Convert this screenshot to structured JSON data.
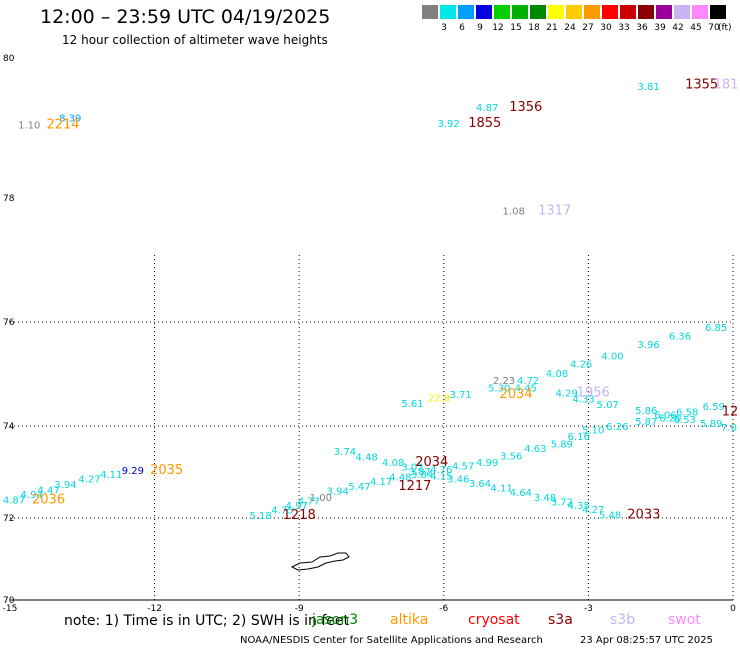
{
  "title": "12:00 – 23:59 UTC 04/19/2025",
  "subtitle": "12 hour collection of altimeter wave heights",
  "legend": {
    "unit": "(ft)",
    "items": [
      {
        "label": "3",
        "color": "#808080"
      },
      {
        "label": "6",
        "color": "#00e8e8"
      },
      {
        "label": "9",
        "color": "#00a0ff"
      },
      {
        "label": "12",
        "color": "#0000e0"
      },
      {
        "label": "15",
        "color": "#00d000"
      },
      {
        "label": "18",
        "color": "#00b000"
      },
      {
        "label": "21",
        "color": "#008800"
      },
      {
        "label": "24",
        "color": "#ffff00"
      },
      {
        "label": "27",
        "color": "#ffcc00"
      },
      {
        "label": "30",
        "color": "#ff9900"
      },
      {
        "label": "33",
        "color": "#ff0000"
      },
      {
        "label": "36",
        "color": "#cc0000"
      },
      {
        "label": "39",
        "color": "#880000"
      },
      {
        "label": "42",
        "color": "#990099"
      },
      {
        "label": "45",
        "color": "#c8b4f0"
      },
      {
        "label": "70",
        "color": "#ff88ff"
      },
      {
        "label": "",
        "color": "#000000"
      }
    ]
  },
  "map": {
    "lon_min": -15,
    "lon_max": 0,
    "lat_min": 70,
    "lat_max": 80,
    "lat_ticks": [
      "80",
      "78",
      "76",
      "74",
      "72",
      "70"
    ],
    "lon_ticks": [
      "-15",
      "-12",
      "-9",
      "-6",
      "-3",
      "0"
    ]
  },
  "colors": {
    "cyan": "#00d8e0",
    "gray": "#808080",
    "blue_light": "#00a0ff",
    "blue_dark": "#0000c0",
    "yellow": "#f0f000",
    "orange": "#ff9900",
    "dark_red": "#880000",
    "lavender": "#c8b4f0"
  },
  "observations": [
    {
      "text": "1.10",
      "color": "gray",
      "lon": -14.6,
      "lat": 79.05
    },
    {
      "text": "8.39",
      "color": "blue_light",
      "lon": -13.75,
      "lat": 79.15
    },
    {
      "text": "2214",
      "color": "orange",
      "lon": -13.9,
      "lat": 79.05,
      "big": true
    },
    {
      "text": "3.81",
      "color": "cyan",
      "lon": -1.75,
      "lat": 79.6
    },
    {
      "text": "1355",
      "color": "dark_red",
      "lon": -0.65,
      "lat": 79.62,
      "big": true
    },
    {
      "text": "181",
      "color": "lavender",
      "lon": 0.0,
      "lat": 79.62,
      "big": true
    },
    {
      "text": "4.87",
      "color": "cyan",
      "lon": -5.1,
      "lat": 79.3
    },
    {
      "text": "1356",
      "color": "dark_red",
      "lon": -4.3,
      "lat": 79.3,
      "big": true
    },
    {
      "text": "3.92",
      "color": "cyan",
      "lon": -5.9,
      "lat": 79.07
    },
    {
      "text": "1855",
      "color": "dark_red",
      "lon": -5.15,
      "lat": 79.07,
      "big": true
    },
    {
      "text": "1.08",
      "color": "gray",
      "lon": -4.55,
      "lat": 77.8
    },
    {
      "text": "1317",
      "color": "lavender",
      "lon": -3.7,
      "lat": 77.8,
      "big": true
    },
    {
      "text": "6.85",
      "color": "cyan",
      "lon": -0.35,
      "lat": 75.9
    },
    {
      "text": "6.36",
      "color": "cyan",
      "lon": -1.1,
      "lat": 75.74
    },
    {
      "text": "3.96",
      "color": "cyan",
      "lon": -1.75,
      "lat": 75.58
    },
    {
      "text": "4.00",
      "color": "cyan",
      "lon": -2.5,
      "lat": 75.36
    },
    {
      "text": "4.26",
      "color": "cyan",
      "lon": -3.15,
      "lat": 75.2
    },
    {
      "text": "4.08",
      "color": "cyan",
      "lon": -3.65,
      "lat": 75.02
    },
    {
      "text": "2.23",
      "color": "gray",
      "lon": -4.75,
      "lat": 74.88
    },
    {
      "text": "4.72",
      "color": "cyan",
      "lon": -4.25,
      "lat": 74.88
    },
    {
      "text": "5.30",
      "color": "cyan",
      "lon": -4.85,
      "lat": 74.74
    },
    {
      "text": "4.45",
      "color": "cyan",
      "lon": -4.3,
      "lat": 74.74
    },
    {
      "text": "3.71",
      "color": "cyan",
      "lon": -5.65,
      "lat": 74.62
    },
    {
      "text": "2034",
      "color": "orange",
      "lon": -4.5,
      "lat": 74.62,
      "big": true
    },
    {
      "text": "4.29",
      "color": "cyan",
      "lon": -3.45,
      "lat": 74.64
    },
    {
      "text": "1956",
      "color": "lavender",
      "lon": -2.9,
      "lat": 74.64,
      "big": true
    },
    {
      "text": "22.8",
      "color": "yellow",
      "lon": -6.1,
      "lat": 74.55
    },
    {
      "text": "4.33",
      "color": "cyan",
      "lon": -3.1,
      "lat": 74.53
    },
    {
      "text": "5.61",
      "color": "cyan",
      "lon": -6.65,
      "lat": 74.44
    },
    {
      "text": "5.07",
      "color": "cyan",
      "lon": -2.6,
      "lat": 74.42
    },
    {
      "text": "6.59",
      "color": "cyan",
      "lon": -0.4,
      "lat": 74.38
    },
    {
      "text": "5.86",
      "color": "cyan",
      "lon": -1.8,
      "lat": 74.31
    },
    {
      "text": "6.58",
      "color": "cyan",
      "lon": -0.95,
      "lat": 74.28
    },
    {
      "text": "12",
      "color": "dark_red",
      "lon": 0.0,
      "lat": 74.28,
      "big": true
    },
    {
      "text": "6.06",
      "color": "cyan",
      "lon": -1.4,
      "lat": 74.22
    },
    {
      "text": "6.29",
      "color": "cyan",
      "lon": -1.3,
      "lat": 74.16
    },
    {
      "text": "6.53",
      "color": "cyan",
      "lon": -1.0,
      "lat": 74.13
    },
    {
      "text": "5.87",
      "color": "cyan",
      "lon": -1.8,
      "lat": 74.1
    },
    {
      "text": "5.89",
      "color": "cyan",
      "lon": -0.45,
      "lat": 74.06
    },
    {
      "text": "6.26",
      "color": "cyan",
      "lon": -2.4,
      "lat": 74.0
    },
    {
      "text": "7.0",
      "color": "cyan",
      "lon": 0.0,
      "lat": 73.98
    },
    {
      "text": "5.10",
      "color": "cyan",
      "lon": -2.9,
      "lat": 73.92
    },
    {
      "text": "6.16",
      "color": "cyan",
      "lon": -3.2,
      "lat": 73.78
    },
    {
      "text": "5.89",
      "color": "cyan",
      "lon": -3.55,
      "lat": 73.62
    },
    {
      "text": "4.63",
      "color": "cyan",
      "lon": -4.1,
      "lat": 73.52
    },
    {
      "text": "3.56",
      "color": "cyan",
      "lon": -4.6,
      "lat": 73.36
    },
    {
      "text": "3.74",
      "color": "cyan",
      "lon": -8.05,
      "lat": 73.46
    },
    {
      "text": "4.48",
      "color": "cyan",
      "lon": -7.6,
      "lat": 73.34
    },
    {
      "text": "4.99",
      "color": "cyan",
      "lon": -5.1,
      "lat": 73.22
    },
    {
      "text": "4.08",
      "color": "cyan",
      "lon": -7.05,
      "lat": 73.22
    },
    {
      "text": "2034",
      "color": "dark_red",
      "lon": -6.25,
      "lat": 73.22,
      "big": true
    },
    {
      "text": "4.57",
      "color": "cyan",
      "lon": -5.6,
      "lat": 73.14
    },
    {
      "text": "3.02",
      "color": "cyan",
      "lon": -6.65,
      "lat": 73.12
    },
    {
      "text": "4.76",
      "color": "cyan",
      "lon": -6.05,
      "lat": 73.06
    },
    {
      "text": "3.87",
      "color": "cyan",
      "lon": -6.5,
      "lat": 73.02
    },
    {
      "text": "3.84",
      "color": "cyan",
      "lon": -6.45,
      "lat": 72.96
    },
    {
      "text": "4.15",
      "color": "cyan",
      "lon": -6.05,
      "lat": 72.92
    },
    {
      "text": "4.48",
      "color": "cyan",
      "lon": -6.9,
      "lat": 72.9
    },
    {
      "text": "3.46",
      "color": "cyan",
      "lon": -5.7,
      "lat": 72.86
    },
    {
      "text": "4.17",
      "color": "cyan",
      "lon": -7.3,
      "lat": 72.8
    },
    {
      "text": "3.64",
      "color": "cyan",
      "lon": -5.25,
      "lat": 72.76
    },
    {
      "text": "5.47",
      "color": "cyan",
      "lon": -7.75,
      "lat": 72.7
    },
    {
      "text": "1217",
      "color": "dark_red",
      "lon": -6.6,
      "lat": 72.7,
      "big": true
    },
    {
      "text": "4.11",
      "color": "cyan",
      "lon": -4.8,
      "lat": 72.66
    },
    {
      "text": "3.94",
      "color": "cyan",
      "lon": -8.2,
      "lat": 72.6
    },
    {
      "text": "4.64",
      "color": "cyan",
      "lon": -4.4,
      "lat": 72.56
    },
    {
      "text": "3.48",
      "color": "cyan",
      "lon": -3.9,
      "lat": 72.46
    },
    {
      "text": "3.72",
      "color": "cyan",
      "lon": -3.55,
      "lat": 72.36
    },
    {
      "text": "4.35",
      "color": "cyan",
      "lon": -3.2,
      "lat": 72.28
    },
    {
      "text": "4.27",
      "color": "cyan",
      "lon": -2.9,
      "lat": 72.2
    },
    {
      "text": "5.48",
      "color": "cyan",
      "lon": -2.55,
      "lat": 72.08
    },
    {
      "text": "2033",
      "color": "dark_red",
      "lon": -1.85,
      "lat": 72.08,
      "big": true
    },
    {
      "text": "1.00",
      "color": "gray",
      "lon": -8.55,
      "lat": 72.46
    },
    {
      "text": "4.77",
      "color": "cyan",
      "lon": -8.8,
      "lat": 72.38
    },
    {
      "text": "4.97",
      "color": "cyan",
      "lon": -9.05,
      "lat": 72.28
    },
    {
      "text": "4.75",
      "color": "cyan",
      "lon": -9.35,
      "lat": 72.18
    },
    {
      "text": "5.18",
      "color": "cyan",
      "lon": -9.8,
      "lat": 72.06
    },
    {
      "text": "1218",
      "color": "dark_red",
      "lon": -9.0,
      "lat": 72.06,
      "big": true
    },
    {
      "text": "9.29",
      "color": "blue_dark",
      "lon": -12.45,
      "lat": 73.04
    },
    {
      "text": "2035",
      "color": "orange",
      "lon": -11.75,
      "lat": 73.04,
      "big": true
    },
    {
      "text": "4.11",
      "color": "cyan",
      "lon": -12.9,
      "lat": 72.96
    },
    {
      "text": "4.27",
      "color": "cyan",
      "lon": -13.35,
      "lat": 72.86
    },
    {
      "text": "3.94",
      "color": "cyan",
      "lon": -13.85,
      "lat": 72.74
    },
    {
      "text": "4.47",
      "color": "cyan",
      "lon": -14.2,
      "lat": 72.62
    },
    {
      "text": "4.94",
      "color": "cyan",
      "lon": -14.55,
      "lat": 72.52
    },
    {
      "text": "4.87",
      "color": "cyan",
      "lon": -14.95,
      "lat": 72.4
    },
    {
      "text": "2036",
      "color": "orange",
      "lon": -14.2,
      "lat": 72.4,
      "big": true
    }
  ],
  "note": "note:  1) Time is in UTC;  2) SWH is in feet",
  "satellites": [
    {
      "name": "jason3",
      "color": "#008800",
      "left": 312
    },
    {
      "name": "altika",
      "color": "#ff9900",
      "left": 390
    },
    {
      "name": "cryosat",
      "color": "#ff0000",
      "left": 468
    },
    {
      "name": "s3a",
      "color": "#880000",
      "left": 548
    },
    {
      "name": "s3b",
      "color": "#c8b4f0",
      "left": 610
    },
    {
      "name": "swot",
      "color": "#ff88ff",
      "left": 668
    }
  ],
  "footer": {
    "credit": "NOAA/NESDIS Center for Satellite Applications and Research",
    "timestamp": "23 Apr 08:25:57 UTC 2025"
  }
}
